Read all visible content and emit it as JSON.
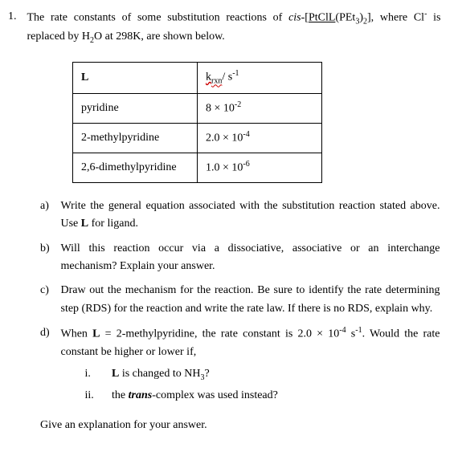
{
  "question": {
    "number": "1.",
    "intro_part1": "The rate constants of some substitution reactions of ",
    "intro_italic": "cis",
    "intro_part2": "-[",
    "intro_underline1": "PtClL",
    "intro_part3": "(PEt",
    "intro_sub1": "3",
    "intro_part4": ")",
    "intro_sub2": "2",
    "intro_part5": "], where Cl",
    "intro_sup1": "-",
    "intro_part6": " is replaced by H",
    "intro_sub3": "2",
    "intro_part7": "O at 298K, are shown below."
  },
  "table": {
    "header1": "L",
    "header2_part1": "k",
    "header2_sub": "rxn",
    "header2_part2": "/ s",
    "header2_sup": "-1",
    "rows": [
      {
        "ligand": "pyridine",
        "rate": "8 × 10",
        "exp": "-2"
      },
      {
        "ligand": "2-methylpyridine",
        "rate": "2.0 × 10",
        "exp": "-4"
      },
      {
        "ligand": "2,6-dimethylpyridine",
        "rate": "1.0 × 10",
        "exp": "-6"
      }
    ]
  },
  "parts": {
    "a": {
      "label": "a)",
      "text1": "Write the general equation associated with the substitution reaction stated above. Use ",
      "bold": "L",
      "text2": " for ligand."
    },
    "b": {
      "label": "b)",
      "text": "Will this reaction occur via a dissociative, associative or an interchange mechanism? Explain your answer."
    },
    "c": {
      "label": "c)",
      "text": "Draw out the mechanism for the reaction. Be sure to identify the rate determining step (RDS) for the reaction and write the rate law. If there is no RDS, explain why."
    },
    "d": {
      "label": "d)",
      "text1": "When ",
      "bold1": "L",
      "text2": " = 2-methylpyridine, the rate constant is 2.0 × 10",
      "exp": "-4",
      "text3": " s",
      "exp2": "-1",
      "text4": ". Would the rate constant be higher or lower if,",
      "i_label": "i.",
      "i_bold": "L",
      "i_text": " is changed to NH",
      "i_sub": "3",
      "i_text2": "?",
      "ii_label": "ii.",
      "ii_text1": "the ",
      "ii_italic": "trans",
      "ii_text2": "-complex was used instead?"
    }
  },
  "final": "Give an explanation for your answer."
}
